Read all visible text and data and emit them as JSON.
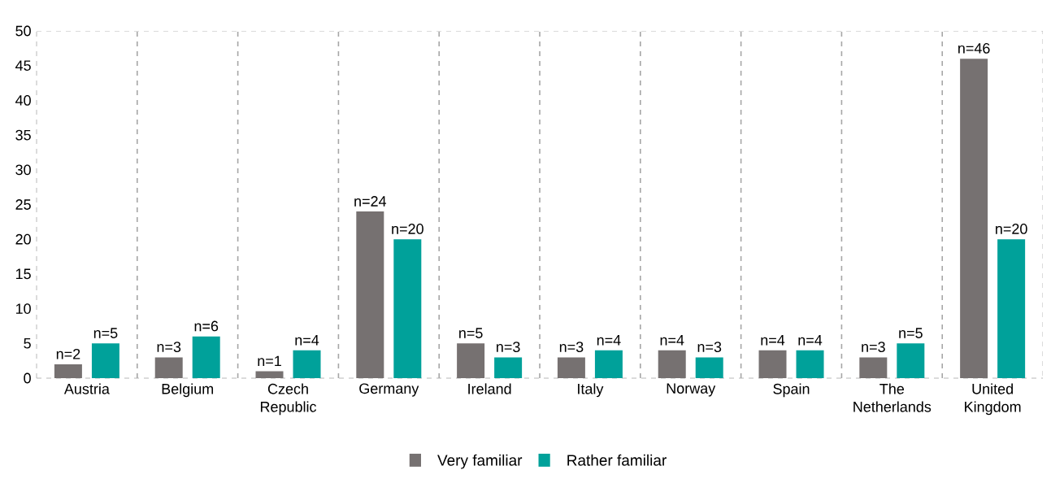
{
  "chart_data": {
    "type": "bar",
    "categories": [
      "Austria",
      "Belgium",
      "Czech Republic",
      "Germany",
      "Ireland",
      "Italy",
      "Norway",
      "Spain",
      "The Netherlands",
      "United Kingdom"
    ],
    "series": [
      {
        "name": "Very familiar",
        "color": "#767171",
        "values": [
          2,
          3,
          1,
          24,
          5,
          3,
          4,
          4,
          3,
          46
        ],
        "value_labels": [
          "n=2",
          "n=3",
          "n=1",
          "n=24",
          "n=5",
          "n=3",
          "n=4",
          "n=4",
          "n=3",
          "n=46"
        ]
      },
      {
        "name": "Rather familiar",
        "color": "#00a19a",
        "values": [
          5,
          6,
          4,
          20,
          3,
          4,
          3,
          4,
          5,
          20
        ],
        "value_labels": [
          "n=5",
          "n=6",
          "n=4",
          "n=20",
          "n=3",
          "n=4",
          "n=3",
          "n=4",
          "n=5",
          "n=20"
        ]
      }
    ],
    "ylim": [
      0,
      50
    ],
    "yticks": [
      0,
      5,
      10,
      15,
      20,
      25,
      30,
      35,
      40,
      45,
      50
    ],
    "grid": "x",
    "legend": "bottom"
  }
}
